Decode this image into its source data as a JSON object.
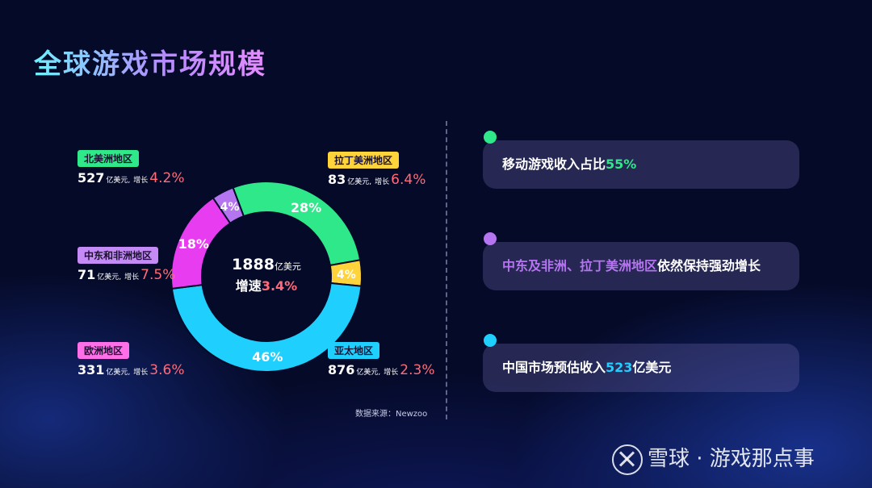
{
  "title": "全球游戏市场规模",
  "chart_data": {
    "type": "pie",
    "total_label": "1888",
    "total_unit": "亿美元",
    "growth_prefix": "增速",
    "growth_value": "3.4%",
    "slices": [
      {
        "label": "北美洲地区",
        "value": 527,
        "percent": 28,
        "color": "#2ee88a"
      },
      {
        "label": "拉丁美洲地区",
        "value": 83,
        "percent": 4,
        "color": "#ffd43b"
      },
      {
        "label": "亚太地区",
        "value": 876,
        "percent": 46,
        "color": "#1fd0ff"
      },
      {
        "label": "欧洲地区",
        "value": 331,
        "percent": 18,
        "color": "#e83cf0"
      },
      {
        "label": "中东和非洲地区",
        "value": 71,
        "percent": 4,
        "color": "#b575f0"
      }
    ],
    "source": "数据来源：Newzoo"
  },
  "regions": {
    "na": {
      "name": "北美洲地区",
      "value": "527",
      "growth": "4.2%",
      "color": "#2ee88a"
    },
    "latam": {
      "name": "拉丁美洲地区",
      "value": "83",
      "growth": "6.4%",
      "color": "#ffd43b"
    },
    "mea": {
      "name": "中东和非洲地区",
      "value": "71",
      "growth": "7.5%",
      "color": "#c48af5"
    },
    "eu": {
      "name": "欧洲地区",
      "value": "331",
      "growth": "3.6%",
      "color": "#ff6fe8"
    },
    "apac": {
      "name": "亚太地区",
      "value": "876",
      "growth": "2.3%",
      "color": "#1fd0ff"
    }
  },
  "labels": {
    "unit": "亿美元,",
    "growth_word": "增长"
  },
  "cards": [
    {
      "pre": "移动游戏收入占比",
      "hl": "55%",
      "post": "",
      "dot_color": "#2ee88a",
      "hl_color": "#2ee88a",
      "pre_color": "#ffffff"
    },
    {
      "pre": "中东及非洲、拉丁美洲地区",
      "hl": "依然保持强劲增长",
      "post": "",
      "dot_color": "#b575f0",
      "hl_color": "#ffffff",
      "pre_color": "#b575f0"
    },
    {
      "pre": "中国市场预估收入",
      "hl": "523",
      "post": "亿美元",
      "dot_color": "#1fd0ff",
      "hl_color": "#1fd0ff",
      "pre_color": "#ffffff"
    }
  ],
  "watermark": "雪球 · 游戏那点事"
}
